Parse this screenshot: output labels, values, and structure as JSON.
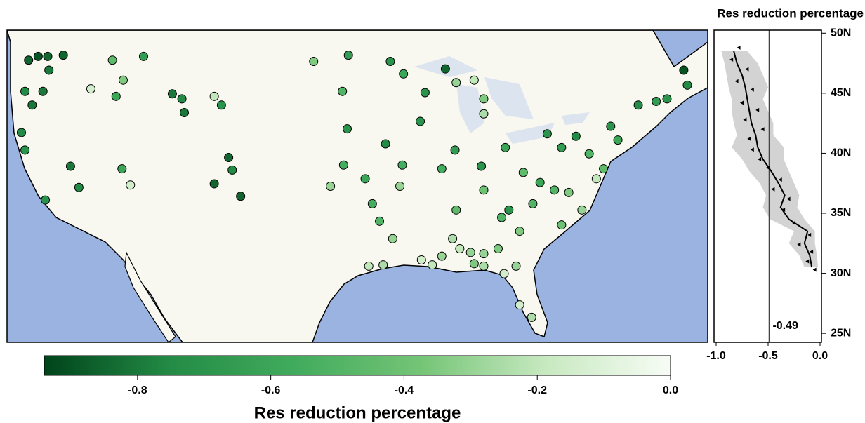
{
  "map": {
    "lon_lim": [
      -125,
      -66.5
    ],
    "lat_lim": [
      24.5,
      49.5
    ],
    "stations": {
      "lon": [
        -123.2,
        -122.4,
        -121.6,
        -121.5,
        -123.5,
        -122.9,
        -123.8,
        -123.5,
        -120.3,
        -122.0,
        -119.7,
        -119.0,
        -121.8,
        -116.2,
        -115.3,
        -113.6,
        -118.0,
        -115.9,
        -111.2,
        -110.4,
        -110.2,
        -107.7,
        -107.1,
        -115.4,
        -114.7,
        -106.5,
        -106.2,
        -107.7,
        -105.5,
        -99.4,
        -96.5,
        -93.0,
        -97.0,
        -96.6,
        -96.9,
        -98.0,
        -95.1,
        -93.4,
        -92.0,
        -92.2,
        -94.5,
        -93.9,
        -92.8,
        -94.8,
        -93.6,
        -91.9,
        -90.1,
        -88.4,
        -87.5,
        -86.0,
        -85.2,
        -85.2,
        -90.5,
        -87.6,
        -88.7,
        -85.4,
        -83.4,
        -81.9,
        -85.2,
        -79.9,
        -78.7,
        -77.5,
        -76.4,
        -74.6,
        -74.0,
        -72.3,
        -70.8,
        -69.9,
        -68.5,
        -68.2,
        -80.5,
        -79.3,
        -78.1,
        -81.1,
        -83.1,
        -83.7,
        -82.2,
        -78.7,
        -77.0,
        -75.8,
        -75.2,
        -87.5,
        -87.8,
        -87.2,
        -88.7,
        -90.4,
        -89.5,
        -86.3,
        -85.2,
        -84.0,
        -82.5,
        -85.2,
        -83.5,
        -82.2,
        -81.2,
        -86.0
      ],
      "lat": [
        47.1,
        47.4,
        47.4,
        46.3,
        44.6,
        43.5,
        41.3,
        39.9,
        47.5,
        44.6,
        38.6,
        36.9,
        35.9,
        47.1,
        45.5,
        47.4,
        44.8,
        44.2,
        44.4,
        44.0,
        42.9,
        44.2,
        43.5,
        38.4,
        37.1,
        39.3,
        38.3,
        37.2,
        36.2,
        47.0,
        47.5,
        47.0,
        44.6,
        41.6,
        38.7,
        37.0,
        37.6,
        40.4,
        38.7,
        37.0,
        35.6,
        34.2,
        32.8,
        30.6,
        30.7,
        46.0,
        44.5,
        46.4,
        45.3,
        45.5,
        44.0,
        42.8,
        42.2,
        39.9,
        38.4,
        38.6,
        40.1,
        38.1,
        36.7,
        41.2,
        40.1,
        41.0,
        39.6,
        41.8,
        40.7,
        43.5,
        43.8,
        44.0,
        46.3,
        45.1,
        37.3,
        36.7,
        36.5,
        35.6,
        35.1,
        34.5,
        33.4,
        33.9,
        35.1,
        37.6,
        38.4,
        35.1,
        32.8,
        32.0,
        31.4,
        31.1,
        30.7,
        31.7,
        31.6,
        32.0,
        30.6,
        30.6,
        30.0,
        27.5,
        26.5,
        30.8
      ],
      "values": [
        -0.85,
        -0.9,
        -0.85,
        -0.8,
        -0.75,
        -0.8,
        -0.75,
        -0.7,
        -0.85,
        -0.8,
        -0.8,
        -0.75,
        -0.7,
        -0.45,
        -0.35,
        -0.65,
        -0.15,
        -0.6,
        -0.8,
        -0.75,
        -0.8,
        -0.2,
        -0.7,
        -0.6,
        -0.15,
        -0.85,
        -0.75,
        -0.85,
        -0.85,
        -0.35,
        -0.65,
        -0.7,
        -0.5,
        -0.7,
        -0.55,
        -0.3,
        -0.6,
        -0.75,
        -0.55,
        -0.3,
        -0.55,
        -0.5,
        -0.3,
        -0.2,
        -0.25,
        -0.6,
        -0.7,
        -0.85,
        -0.3,
        -0.2,
        -0.35,
        -0.25,
        -0.7,
        -0.65,
        -0.55,
        -0.7,
        -0.6,
        -0.45,
        -0.4,
        -0.7,
        -0.65,
        -0.75,
        -0.5,
        -0.7,
        -0.6,
        -0.75,
        -0.65,
        -0.7,
        -0.9,
        -0.75,
        -0.6,
        -0.5,
        -0.35,
        -0.5,
        -0.7,
        -0.5,
        -0.35,
        -0.4,
        -0.3,
        -0.2,
        -0.45,
        -0.45,
        -0.25,
        -0.2,
        -0.3,
        -0.15,
        -0.2,
        -0.3,
        -0.3,
        -0.35,
        -0.3,
        -0.25,
        -0.15,
        -0.15,
        -0.25,
        -0.35
      ]
    }
  },
  "colorbar": {
    "label": "Res reduction percentage",
    "lim": [
      -0.94,
      0
    ],
    "ticks": [
      -0.8,
      -0.6,
      -0.4,
      -0.2,
      {
        "value": 0,
        "label": "0.0"
      }
    ]
  },
  "profile_panel": {
    "title": "Res reduction percentage",
    "xlim": [
      -1,
      0
    ],
    "ylim": [
      24.25,
      50.25
    ],
    "xticks": [
      {
        "value": -1,
        "label": "-1.0"
      },
      -0.5,
      {
        "value": 0,
        "label": "0.0"
      }
    ],
    "yticks": [
      {
        "value": 50,
        "label": "50N"
      },
      {
        "value": 45,
        "label": "45N"
      },
      {
        "value": 40,
        "label": "40N"
      },
      {
        "value": 35,
        "label": "35N"
      },
      {
        "value": 30,
        "label": "30N"
      },
      {
        "value": 25,
        "label": "25N"
      }
    ],
    "mean": -0.49,
    "lat": [
      48.5,
      47.5,
      46.5,
      45.5,
      44.5,
      43.5,
      42.5,
      41.5,
      40.5,
      39.5,
      38.5,
      37.5,
      36.5,
      35.5,
      34.5,
      33.5,
      32.5,
      31.5,
      30.5
    ],
    "values": [
      -0.83,
      -0.8,
      -0.75,
      -0.72,
      -0.7,
      -0.68,
      -0.66,
      -0.62,
      -0.6,
      -0.55,
      -0.47,
      -0.4,
      -0.34,
      -0.38,
      -0.3,
      -0.12,
      -0.15,
      -0.1,
      -0.08
    ],
    "band_low": [
      -0.95,
      -0.92,
      -0.9,
      -0.88,
      -0.85,
      -0.85,
      -0.83,
      -0.8,
      -0.85,
      -0.75,
      -0.68,
      -0.58,
      -0.52,
      -0.55,
      -0.48,
      -0.25,
      -0.3,
      -0.2,
      -0.15
    ],
    "band_high": [
      -0.7,
      -0.6,
      -0.55,
      -0.5,
      -0.55,
      -0.5,
      -0.45,
      -0.45,
      -0.35,
      -0.35,
      -0.3,
      -0.25,
      -0.2,
      -0.22,
      -0.15,
      -0.05,
      -0.05,
      -0.03,
      -0.02
    ],
    "points": {
      "lat": [
        48.8,
        47.8,
        47,
        46,
        45.3,
        44.2,
        43.6,
        42.8,
        42,
        41.2,
        40.3,
        39.5,
        38.8,
        37.8,
        37,
        36.2,
        35.3,
        34.2,
        33.2,
        32.4,
        31.8,
        31,
        30.3
      ],
      "values": [
        -0.78,
        -0.85,
        -0.7,
        -0.8,
        -0.65,
        -0.75,
        -0.6,
        -0.72,
        -0.55,
        -0.68,
        -0.65,
        -0.58,
        -0.5,
        -0.38,
        -0.45,
        -0.3,
        -0.35,
        -0.25,
        -0.1,
        -0.2,
        -0.08,
        -0.12,
        -0.05
      ]
    }
  }
}
